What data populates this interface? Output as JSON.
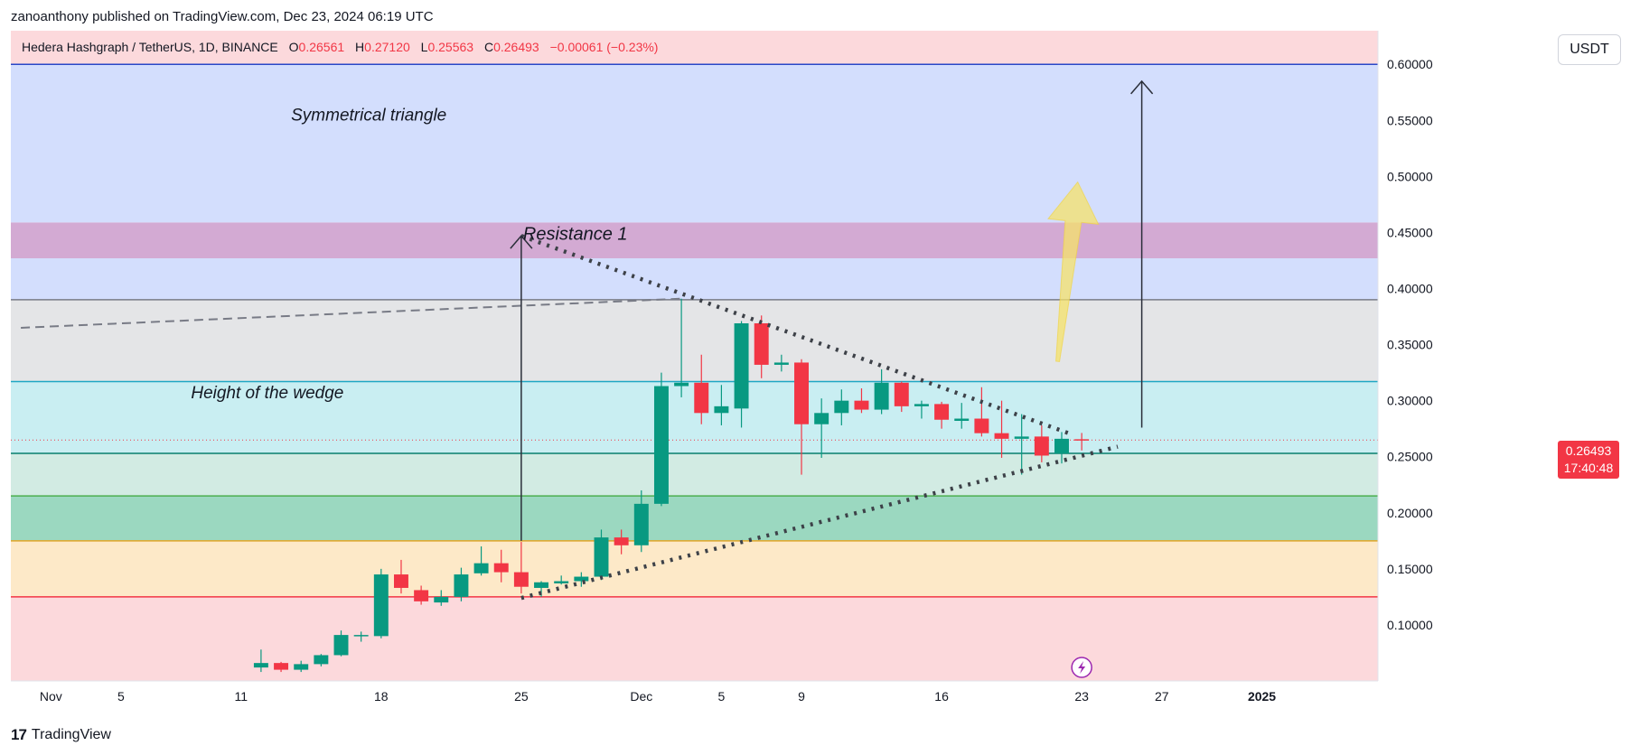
{
  "publisher_line": "zanoanthony published on TradingView.com, Dec 23, 2024 06:19 UTC",
  "symbol": {
    "name": "Hedera Hashgraph / TetherUS, 1D, BINANCE",
    "o_label": "O",
    "o": "0.26561",
    "h_label": "H",
    "h": "0.27120",
    "l_label": "L",
    "l": "0.25563",
    "c_label": "C",
    "c": "0.26493",
    "change": "−0.00061 (−0.23%)"
  },
  "currency": "USDT",
  "last_price": {
    "value": "0.26493",
    "countdown": "17:40:48"
  },
  "footer": {
    "brand": "TradingView",
    "logo_glyph": "17"
  },
  "colors": {
    "up": "#089981",
    "down": "#f23645",
    "zone_pink": "#fcd9dc",
    "zone_blue": "#d3defd",
    "zone_purple": "#d3aad3",
    "zone_grey": "#e4e5e7",
    "zone_cyan": "#c9eef2",
    "zone_mint": "#d2ebe3",
    "zone_green": "#9bd8c0",
    "zone_orange": "#fde9c8"
  },
  "chart_data": {
    "type": "candlestick",
    "ylim": [
      0.05,
      0.63
    ],
    "y_ticks": [
      "0.10000",
      "0.15000",
      "0.20000",
      "0.25000",
      "0.30000",
      "0.35000",
      "0.40000",
      "0.45000",
      "0.50000",
      "0.55000",
      "0.60000"
    ],
    "x_ticks": [
      {
        "label": "Nov",
        "day": -9.5
      },
      {
        "label": "5",
        "day": -6
      },
      {
        "label": "11",
        "day": 0
      },
      {
        "label": "18",
        "day": 7
      },
      {
        "label": "25",
        "day": 14
      },
      {
        "label": "Dec",
        "day": 20
      },
      {
        "label": "5",
        "day": 24
      },
      {
        "label": "9",
        "day": 28
      },
      {
        "label": "16",
        "day": 35
      },
      {
        "label": "23",
        "day": 42
      },
      {
        "label": "27",
        "day": 46
      },
      {
        "label": "2025",
        "day": 51
      }
    ],
    "x_domain_days": [
      -11.5,
      56.8
    ],
    "zones": [
      {
        "from": 0.05,
        "to": 0.125,
        "color": "zone_pink"
      },
      {
        "from": 0.125,
        "to": 0.175,
        "color": "zone_orange"
      },
      {
        "from": 0.175,
        "to": 0.215,
        "color": "zone_green"
      },
      {
        "from": 0.215,
        "to": 0.253,
        "color": "zone_mint"
      },
      {
        "from": 0.253,
        "to": 0.317,
        "color": "zone_cyan"
      },
      {
        "from": 0.317,
        "to": 0.39,
        "color": "zone_grey"
      },
      {
        "from": 0.39,
        "to": 0.427,
        "color": "zone_blue"
      },
      {
        "from": 0.427,
        "to": 0.459,
        "color": "zone_purple"
      },
      {
        "from": 0.459,
        "to": 0.6,
        "color": "zone_blue"
      },
      {
        "from": 0.6,
        "to": 0.63,
        "color": "zone_pink"
      }
    ],
    "levels": [
      {
        "y": 0.125,
        "color": "#f23645"
      },
      {
        "y": 0.175,
        "color": "#e0a62a"
      },
      {
        "y": 0.215,
        "color": "#4caf50"
      },
      {
        "y": 0.253,
        "color": "#087f6e"
      },
      {
        "y": 0.317,
        "color": "#1fa7c4"
      },
      {
        "y": 0.39,
        "color": "#787b86"
      },
      {
        "y": 0.6,
        "color": "#2948c8"
      }
    ],
    "candles": [
      {
        "day": 1,
        "o": 0.062,
        "h": 0.078,
        "l": 0.058,
        "c": 0.066
      },
      {
        "day": 2,
        "o": 0.066,
        "h": 0.067,
        "l": 0.058,
        "c": 0.06
      },
      {
        "day": 3,
        "o": 0.06,
        "h": 0.068,
        "l": 0.058,
        "c": 0.065
      },
      {
        "day": 4,
        "o": 0.065,
        "h": 0.074,
        "l": 0.063,
        "c": 0.073
      },
      {
        "day": 5,
        "o": 0.073,
        "h": 0.095,
        "l": 0.072,
        "c": 0.091
      },
      {
        "day": 6,
        "o": 0.09,
        "h": 0.094,
        "l": 0.085,
        "c": 0.091
      },
      {
        "day": 7,
        "o": 0.09,
        "h": 0.15,
        "l": 0.088,
        "c": 0.145
      },
      {
        "day": 8,
        "o": 0.145,
        "h": 0.158,
        "l": 0.128,
        "c": 0.133
      },
      {
        "day": 9,
        "o": 0.131,
        "h": 0.135,
        "l": 0.118,
        "c": 0.121
      },
      {
        "day": 10,
        "o": 0.12,
        "h": 0.131,
        "l": 0.117,
        "c": 0.125
      },
      {
        "day": 11,
        "o": 0.125,
        "h": 0.151,
        "l": 0.121,
        "c": 0.145
      },
      {
        "day": 12,
        "o": 0.146,
        "h": 0.17,
        "l": 0.144,
        "c": 0.155
      },
      {
        "day": 13,
        "o": 0.155,
        "h": 0.167,
        "l": 0.138,
        "c": 0.147
      },
      {
        "day": 14,
        "o": 0.147,
        "h": 0.174,
        "l": 0.128,
        "c": 0.134
      },
      {
        "day": 15,
        "o": 0.133,
        "h": 0.139,
        "l": 0.125,
        "c": 0.138
      },
      {
        "day": 16,
        "o": 0.137,
        "h": 0.144,
        "l": 0.136,
        "c": 0.139
      },
      {
        "day": 17,
        "o": 0.139,
        "h": 0.147,
        "l": 0.134,
        "c": 0.143
      },
      {
        "day": 18,
        "o": 0.143,
        "h": 0.185,
        "l": 0.14,
        "c": 0.178
      },
      {
        "day": 19,
        "o": 0.178,
        "h": 0.185,
        "l": 0.163,
        "c": 0.171
      },
      {
        "day": 20,
        "o": 0.171,
        "h": 0.22,
        "l": 0.165,
        "c": 0.208
      },
      {
        "day": 21,
        "o": 0.208,
        "h": 0.325,
        "l": 0.206,
        "c": 0.313
      },
      {
        "day": 22,
        "o": 0.313,
        "h": 0.391,
        "l": 0.303,
        "c": 0.316
      },
      {
        "day": 23,
        "o": 0.316,
        "h": 0.341,
        "l": 0.279,
        "c": 0.289
      },
      {
        "day": 24,
        "o": 0.289,
        "h": 0.314,
        "l": 0.278,
        "c": 0.295
      },
      {
        "day": 25,
        "o": 0.293,
        "h": 0.371,
        "l": 0.276,
        "c": 0.369
      },
      {
        "day": 26,
        "o": 0.369,
        "h": 0.376,
        "l": 0.32,
        "c": 0.332
      },
      {
        "day": 27,
        "o": 0.332,
        "h": 0.341,
        "l": 0.326,
        "c": 0.334
      },
      {
        "day": 28,
        "o": 0.334,
        "h": 0.337,
        "l": 0.234,
        "c": 0.279
      },
      {
        "day": 29,
        "o": 0.279,
        "h": 0.302,
        "l": 0.249,
        "c": 0.289
      },
      {
        "day": 30,
        "o": 0.289,
        "h": 0.31,
        "l": 0.278,
        "c": 0.3
      },
      {
        "day": 31,
        "o": 0.3,
        "h": 0.311,
        "l": 0.289,
        "c": 0.292
      },
      {
        "day": 32,
        "o": 0.292,
        "h": 0.328,
        "l": 0.288,
        "c": 0.316
      },
      {
        "day": 33,
        "o": 0.316,
        "h": 0.317,
        "l": 0.29,
        "c": 0.295
      },
      {
        "day": 34,
        "o": 0.295,
        "h": 0.3,
        "l": 0.284,
        "c": 0.297
      },
      {
        "day": 35,
        "o": 0.297,
        "h": 0.299,
        "l": 0.275,
        "c": 0.283
      },
      {
        "day": 36,
        "o": 0.282,
        "h": 0.298,
        "l": 0.275,
        "c": 0.284
      },
      {
        "day": 37,
        "o": 0.284,
        "h": 0.312,
        "l": 0.268,
        "c": 0.271
      },
      {
        "day": 38,
        "o": 0.271,
        "h": 0.3,
        "l": 0.249,
        "c": 0.266
      },
      {
        "day": 39,
        "o": 0.266,
        "h": 0.288,
        "l": 0.234,
        "c": 0.268
      },
      {
        "day": 40,
        "o": 0.268,
        "h": 0.278,
        "l": 0.245,
        "c": 0.251
      },
      {
        "day": 41,
        "o": 0.253,
        "h": 0.272,
        "l": 0.244,
        "c": 0.266
      },
      {
        "day": 42,
        "o": 0.2656,
        "h": 0.2712,
        "l": 0.2556,
        "c": 0.2649
      }
    ],
    "triangle_upper": [
      {
        "day": 14,
        "y": 0.447
      },
      {
        "day": 41.5,
        "y": 0.27
      }
    ],
    "triangle_lower": [
      {
        "day": 14,
        "y": 0.124
      },
      {
        "day": 43.8,
        "y": 0.259
      }
    ],
    "dashed_resistance": [
      {
        "day": -11,
        "y": 0.365
      },
      {
        "day": 22,
        "y": 0.391
      }
    ],
    "height_arrow": {
      "day": 14,
      "from": 0.175,
      "to": 0.447
    },
    "target_arrow": {
      "day": 45,
      "from": 0.276,
      "to": 0.585
    },
    "breakout_arrow": {
      "from": {
        "day": 40.8,
        "y": 0.335
      },
      "to": {
        "day": 41.8,
        "y": 0.495
      }
    },
    "labels": {
      "symmetrical": "Symmetrical triangle",
      "resistance": "Resistance 1",
      "height": "Height of the wedge"
    },
    "label_anchors": {
      "symmetrical": {
        "day": 2.5,
        "y": 0.55
      },
      "resistance": {
        "day": 14,
        "y": 0.445
      },
      "height": {
        "day": -2.5,
        "y": 0.302
      }
    },
    "flash_icon_day": 42
  }
}
